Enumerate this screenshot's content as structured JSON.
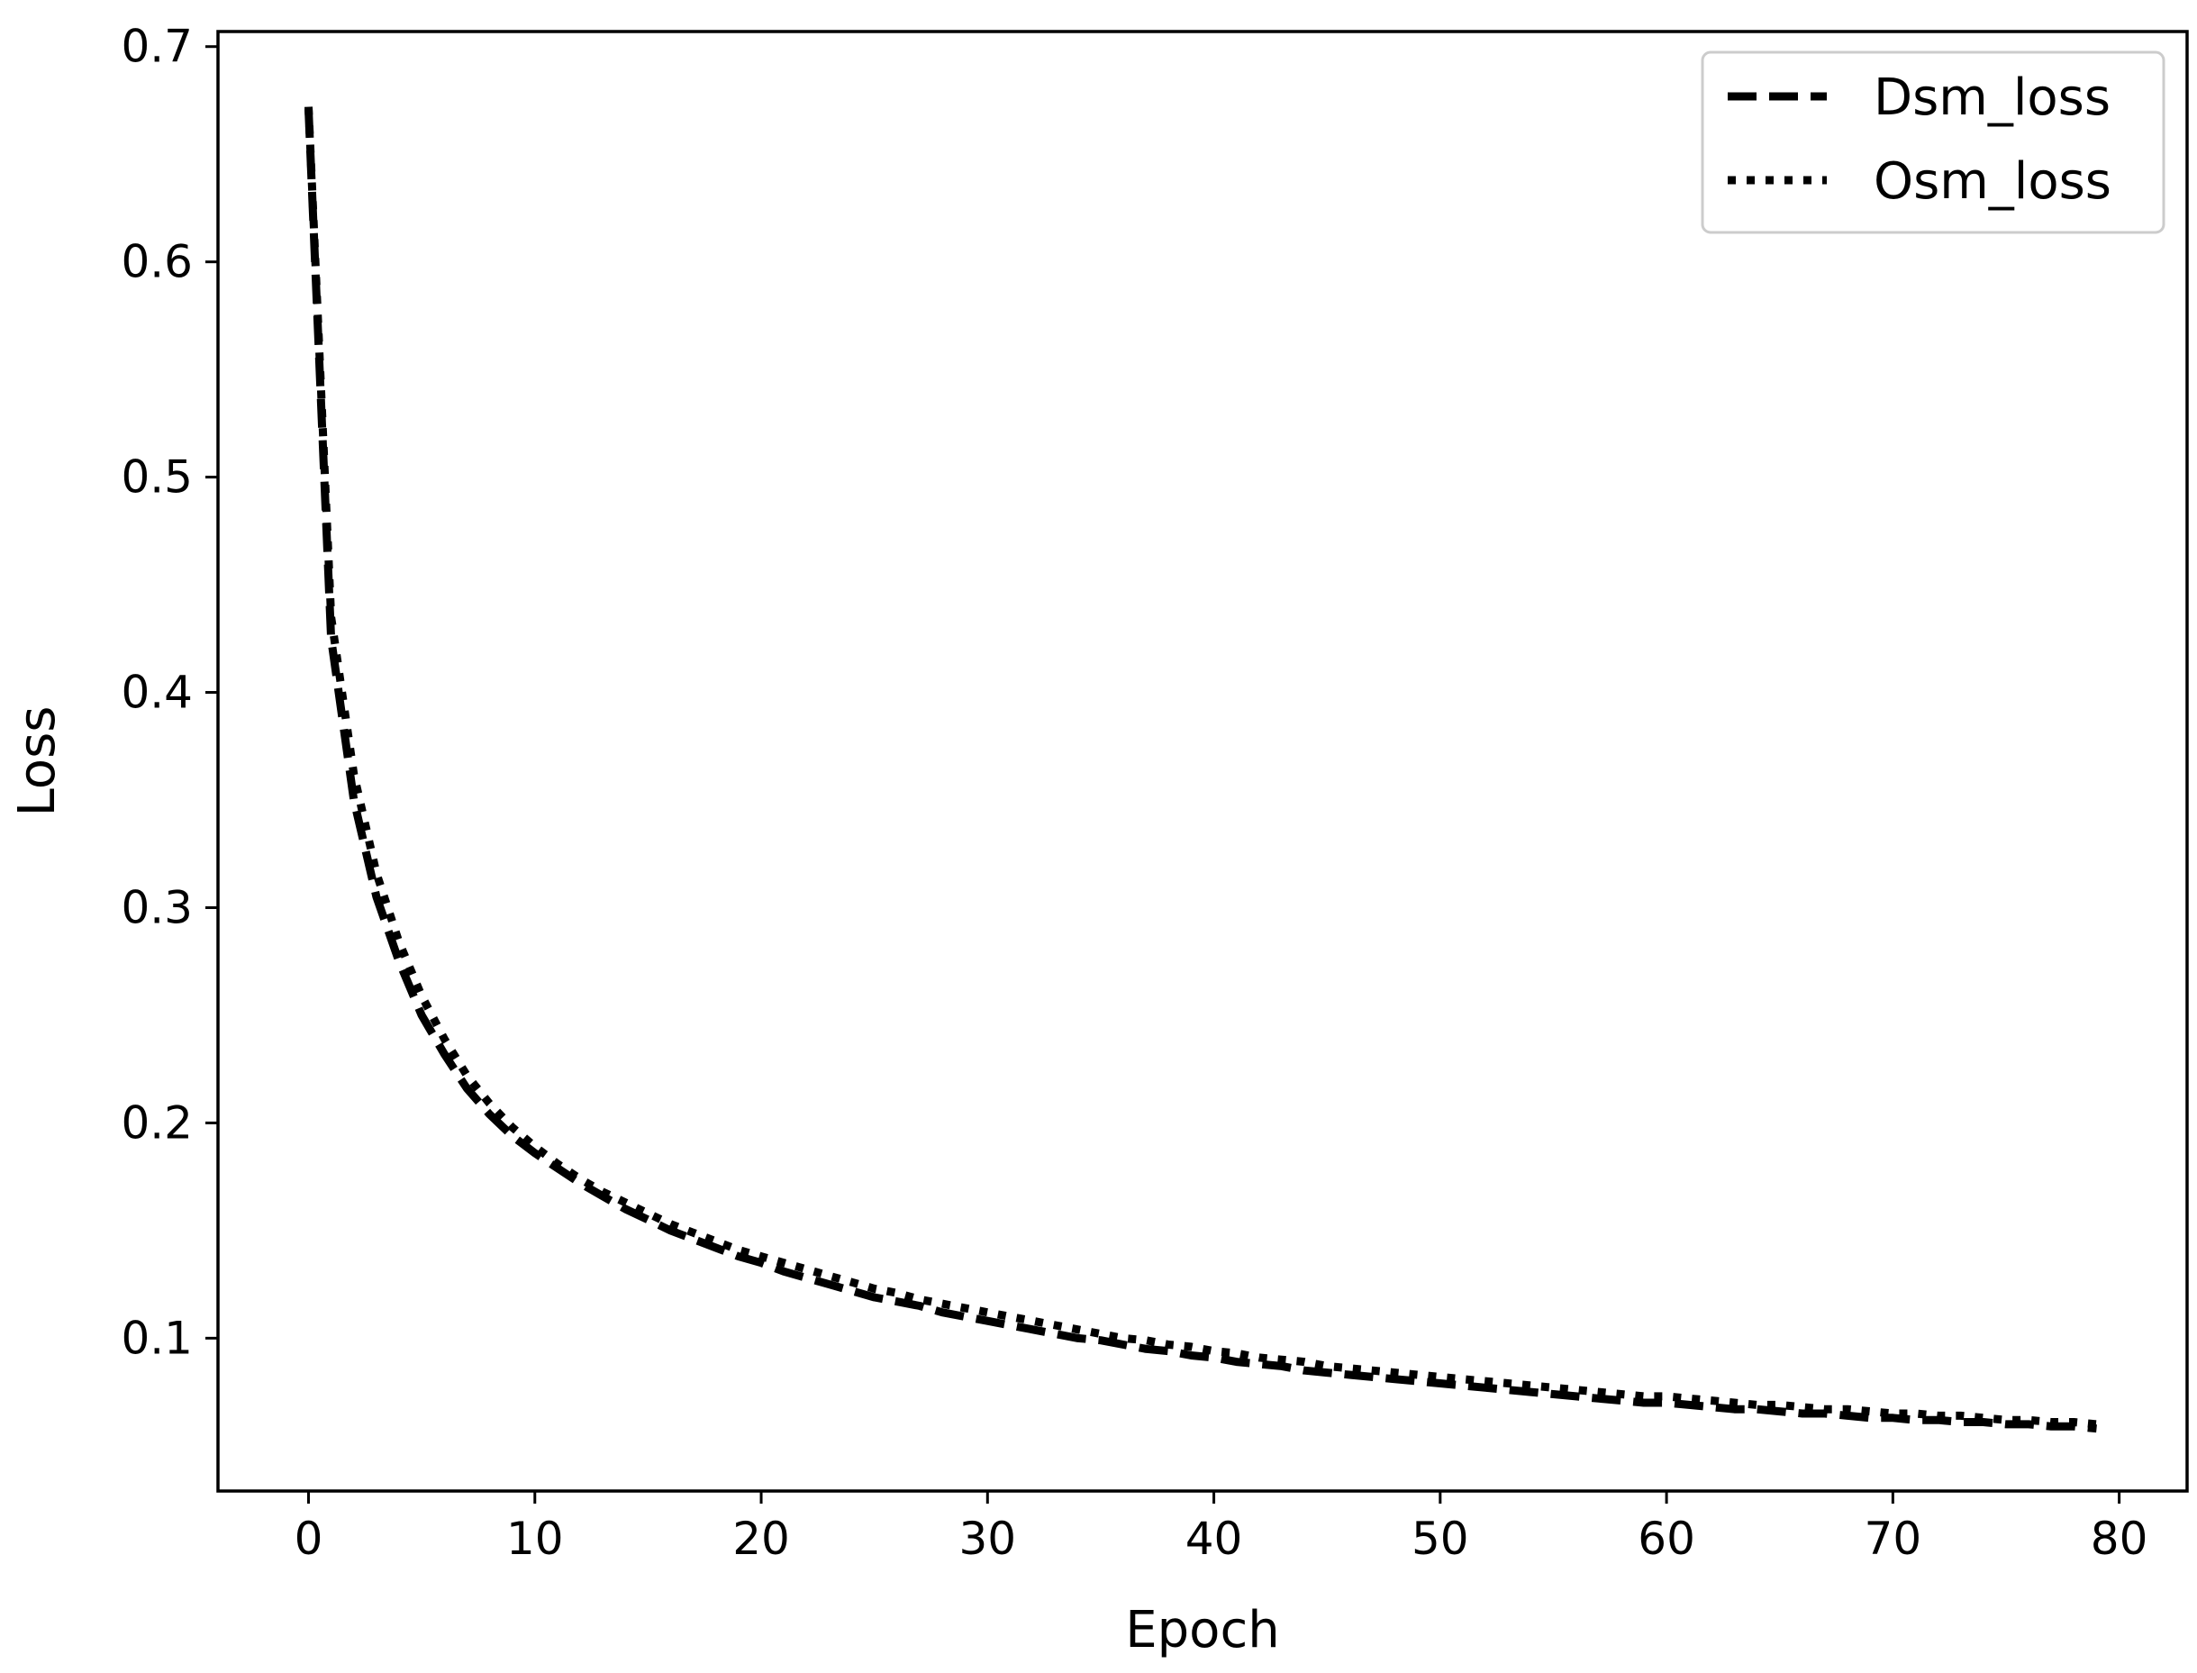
{
  "chart_data": {
    "type": "line",
    "title": "",
    "xlabel": "Epoch",
    "ylabel": "Loss",
    "xlim": [
      -4,
      83
    ],
    "ylim": [
      0.029,
      0.707
    ],
    "xticks": [
      0,
      10,
      20,
      30,
      40,
      50,
      60,
      70,
      80
    ],
    "yticks": [
      0.1,
      0.2,
      0.3,
      0.4,
      0.5,
      0.6,
      0.7
    ],
    "xtick_labels": [
      "0",
      "10",
      "20",
      "30",
      "40",
      "50",
      "60",
      "70",
      "80"
    ],
    "ytick_labels": [
      "0.1",
      "0.2",
      "0.3",
      "0.4",
      "0.5",
      "0.6",
      "0.7"
    ],
    "grid": false,
    "legend": "top-right",
    "series": [
      {
        "name": "Dsm_loss",
        "style": "dashed",
        "color": "#000000",
        "x": [
          0,
          1,
          2,
          3,
          4,
          5,
          6,
          7,
          8,
          9,
          10,
          11,
          12,
          13,
          14,
          15,
          16,
          17,
          18,
          19,
          20,
          21,
          22,
          23,
          24,
          25,
          26,
          27,
          28,
          29,
          30,
          31,
          32,
          33,
          34,
          35,
          36,
          37,
          38,
          39,
          40,
          41,
          42,
          43,
          44,
          45,
          46,
          47,
          48,
          49,
          50,
          51,
          52,
          53,
          54,
          55,
          56,
          57,
          58,
          59,
          60,
          61,
          62,
          63,
          64,
          65,
          66,
          67,
          68,
          69,
          70,
          71,
          72,
          73,
          74,
          75,
          76,
          77,
          78,
          79
        ],
        "values": [
          0.671,
          0.425,
          0.35,
          0.305,
          0.275,
          0.25,
          0.232,
          0.216,
          0.204,
          0.194,
          0.186,
          0.179,
          0.172,
          0.166,
          0.16,
          0.155,
          0.15,
          0.146,
          0.142,
          0.138,
          0.135,
          0.131,
          0.128,
          0.125,
          0.122,
          0.119,
          0.117,
          0.115,
          0.112,
          0.11,
          0.108,
          0.106,
          0.104,
          0.102,
          0.1,
          0.099,
          0.097,
          0.095,
          0.094,
          0.092,
          0.091,
          0.089,
          0.088,
          0.087,
          0.085,
          0.084,
          0.083,
          0.082,
          0.081,
          0.08,
          0.079,
          0.078,
          0.077,
          0.076,
          0.075,
          0.074,
          0.073,
          0.072,
          0.071,
          0.07,
          0.07,
          0.069,
          0.068,
          0.067,
          0.067,
          0.066,
          0.065,
          0.065,
          0.064,
          0.063,
          0.063,
          0.062,
          0.062,
          0.061,
          0.061,
          0.06,
          0.06,
          0.059,
          0.059,
          0.058
        ]
      },
      {
        "name": "Osm_loss",
        "style": "dotted",
        "color": "#000000",
        "x": [
          0,
          1,
          2,
          3,
          4,
          5,
          6,
          7,
          8,
          9,
          10,
          11,
          12,
          13,
          14,
          15,
          16,
          17,
          18,
          19,
          20,
          21,
          22,
          23,
          24,
          25,
          26,
          27,
          28,
          29,
          30,
          31,
          32,
          33,
          34,
          35,
          36,
          37,
          38,
          39,
          40,
          41,
          42,
          43,
          44,
          45,
          46,
          47,
          48,
          49,
          50,
          51,
          52,
          53,
          54,
          55,
          56,
          57,
          58,
          59,
          60,
          61,
          62,
          63,
          64,
          65,
          66,
          67,
          68,
          69,
          70,
          71,
          72,
          73,
          74,
          75,
          76,
          77,
          78,
          79
        ],
        "values": [
          0.672,
          0.435,
          0.362,
          0.316,
          0.284,
          0.259,
          0.239,
          0.222,
          0.209,
          0.198,
          0.189,
          0.181,
          0.174,
          0.168,
          0.163,
          0.158,
          0.153,
          0.149,
          0.145,
          0.141,
          0.138,
          0.135,
          0.132,
          0.129,
          0.126,
          0.123,
          0.121,
          0.118,
          0.116,
          0.114,
          0.112,
          0.11,
          0.108,
          0.106,
          0.104,
          0.102,
          0.1,
          0.099,
          0.097,
          0.096,
          0.094,
          0.093,
          0.091,
          0.09,
          0.089,
          0.087,
          0.086,
          0.085,
          0.084,
          0.083,
          0.082,
          0.081,
          0.08,
          0.079,
          0.078,
          0.077,
          0.076,
          0.075,
          0.074,
          0.073,
          0.073,
          0.072,
          0.071,
          0.07,
          0.069,
          0.069,
          0.068,
          0.067,
          0.067,
          0.066,
          0.065,
          0.065,
          0.064,
          0.064,
          0.063,
          0.062,
          0.062,
          0.061,
          0.061,
          0.06
        ]
      }
    ]
  }
}
